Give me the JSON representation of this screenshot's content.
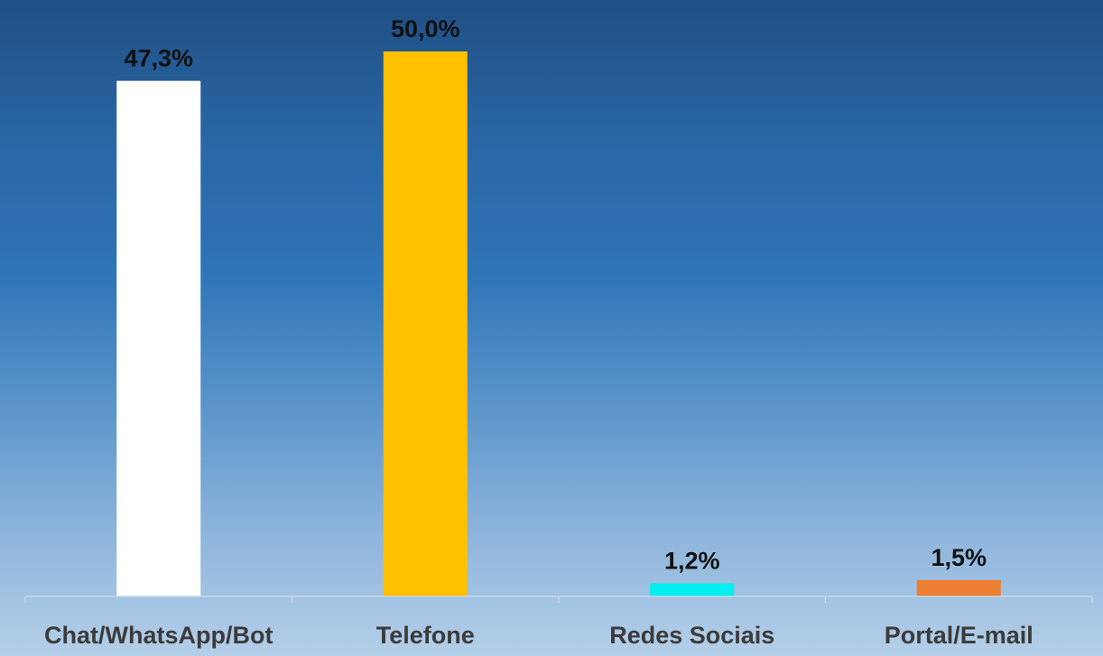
{
  "chart_data": {
    "type": "bar",
    "categories": [
      "Chat/WhatsApp/Bot",
      "Telefone",
      "Redes Sociais",
      "Portal/E-mail"
    ],
    "values": [
      47.3,
      50.0,
      1.2,
      1.5
    ],
    "value_labels": [
      "47,3%",
      "50,0%",
      "1,2%",
      "1,5%"
    ],
    "colors": [
      "#ffffff",
      "#ffc000",
      "#00f0f0",
      "#ed7d31"
    ],
    "title": "",
    "xlabel": "",
    "ylabel": "",
    "ylim": [
      0,
      50
    ],
    "grid": false,
    "legend": "none"
  }
}
